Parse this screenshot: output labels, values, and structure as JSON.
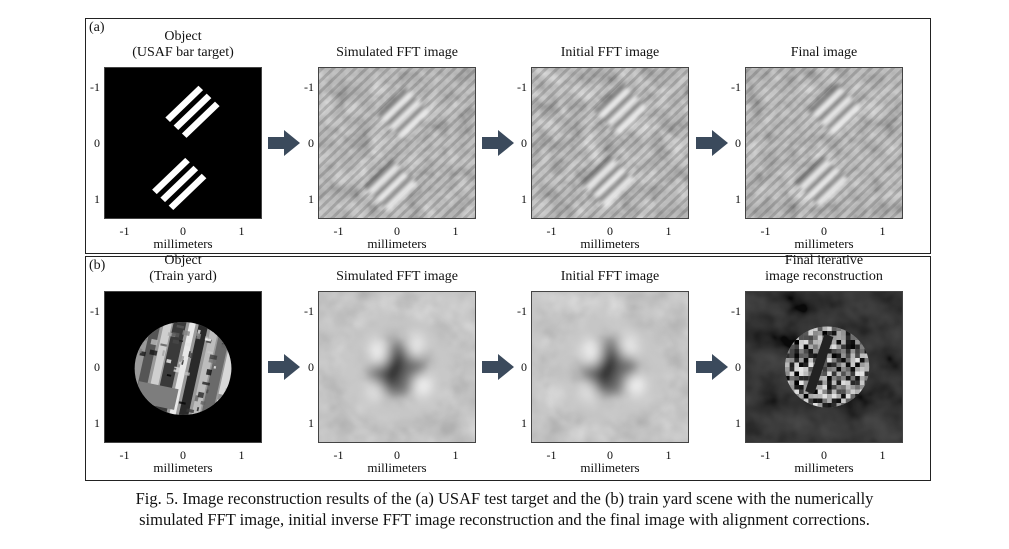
{
  "figure": {
    "panels": [
      {
        "label": "(a)",
        "columns": [
          {
            "title_lines": [
              "Object",
              "(USAF bar target)"
            ],
            "image": "usaf-object"
          },
          {
            "title_lines": [
              "Simulated FFT image"
            ],
            "image": "usaf-simulated"
          },
          {
            "title_lines": [
              "Initial FFT image"
            ],
            "image": "usaf-initial"
          },
          {
            "title_lines": [
              "Final image"
            ],
            "image": "usaf-final"
          }
        ]
      },
      {
        "label": "(b)",
        "columns": [
          {
            "title_lines": [
              "Object",
              "(Train yard)"
            ],
            "image": "train-object"
          },
          {
            "title_lines": [
              "Simulated FFT image"
            ],
            "image": "train-simulated"
          },
          {
            "title_lines": [
              "Initial FFT image"
            ],
            "image": "train-initial"
          },
          {
            "title_lines": [
              "Final iterative",
              "image reconstruction"
            ],
            "image": "train-final"
          }
        ]
      }
    ],
    "axes": {
      "y_ticks": [
        "-1",
        "0",
        "1"
      ],
      "x_ticks": [
        "-1",
        "0",
        "1"
      ],
      "xlabel": "millimeters"
    },
    "colors": {
      "arrow": "#3b4a5c",
      "frame": "#222222"
    }
  },
  "caption": {
    "lines": [
      "Fig. 5. Image reconstruction results of the (a) USAF test target and the (b) train yard scene with the numerically",
      "simulated FFT image, initial inverse FFT image reconstruction and the final image with alignment corrections."
    ]
  }
}
